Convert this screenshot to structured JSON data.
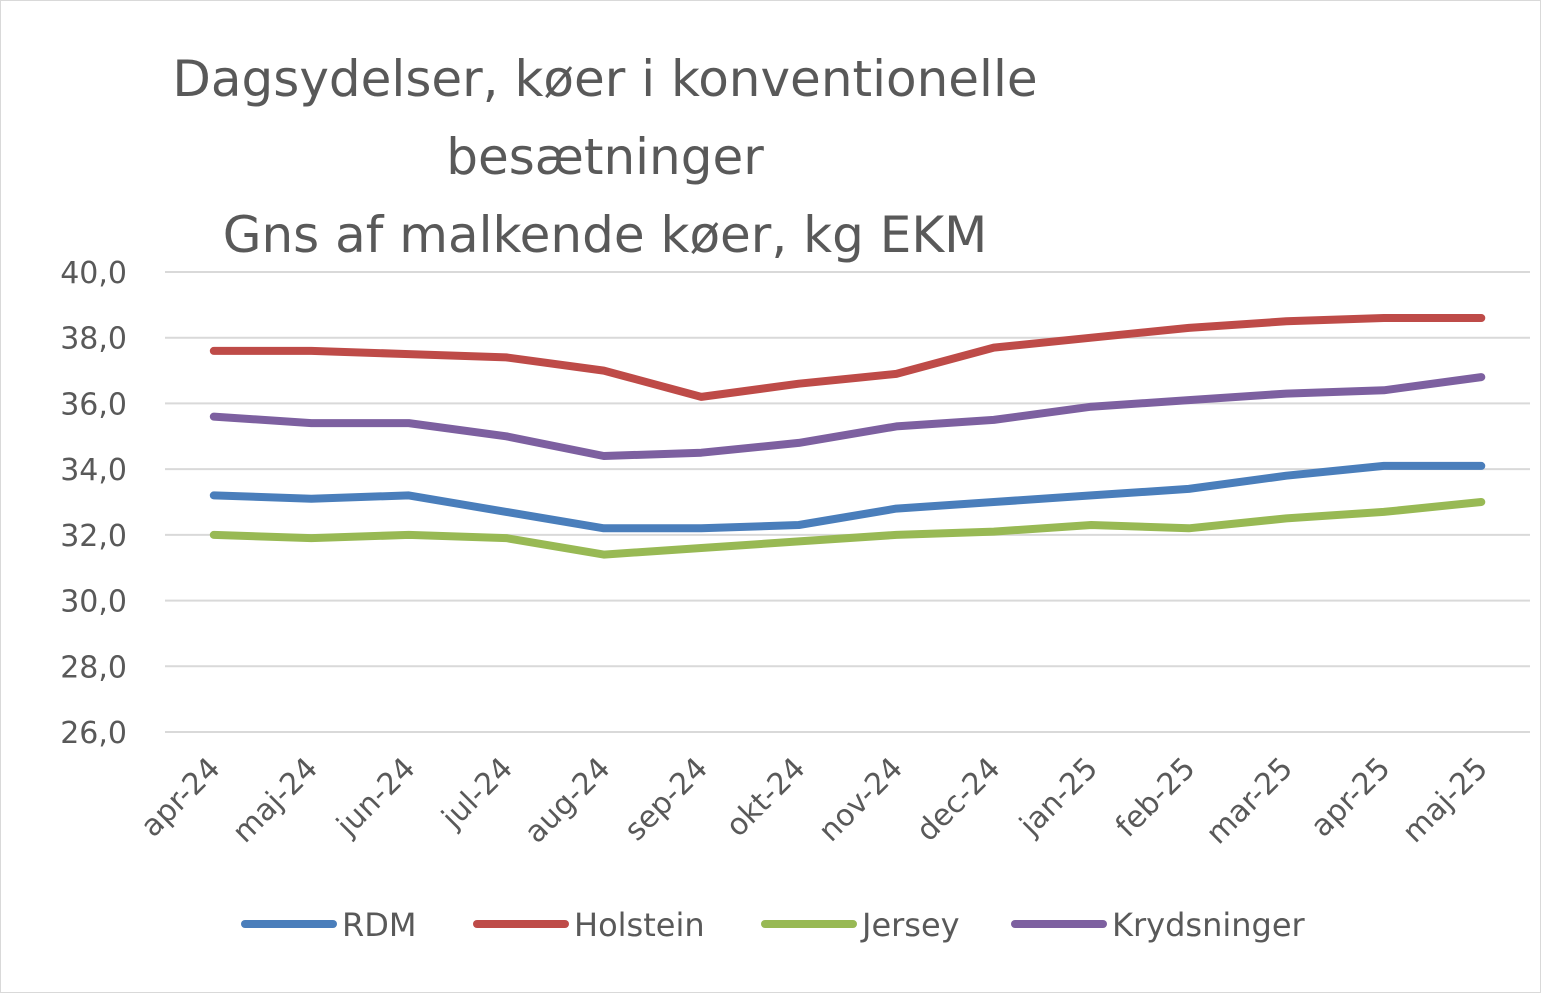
{
  "chart_data": {
    "type": "line",
    "title": [
      "Dagsydelser, køer i konventionelle",
      "besætninger",
      "Gns af malkende køer, kg EKM"
    ],
    "categories": [
      "apr-24",
      "maj-24",
      "jun-24",
      "jul-24",
      "aug-24",
      "sep-24",
      "okt-24",
      "nov-24",
      "dec-24",
      "jan-25",
      "feb-25",
      "mar-25",
      "apr-25",
      "maj-25"
    ],
    "ylim": [
      26,
      40
    ],
    "yticks": [
      "26,0",
      "28,0",
      "30,0",
      "32,0",
      "34,0",
      "36,0",
      "38,0",
      "40,0"
    ],
    "grid": true,
    "legend_position": "bottom",
    "series": [
      {
        "name": "RDM",
        "color": "#4a7ebb",
        "values": [
          33.2,
          33.1,
          33.2,
          32.7,
          32.2,
          32.2,
          32.3,
          32.8,
          33.0,
          33.2,
          33.4,
          33.8,
          34.1,
          34.1
        ]
      },
      {
        "name": "Holstein",
        "color": "#be4b48",
        "values": [
          37.6,
          37.6,
          37.5,
          37.4,
          37.0,
          36.2,
          36.6,
          36.9,
          37.7,
          38.0,
          38.3,
          38.5,
          38.6,
          38.6
        ]
      },
      {
        "name": "Jersey",
        "color": "#98b954",
        "values": [
          32.0,
          31.9,
          32.0,
          31.9,
          31.4,
          31.6,
          31.8,
          32.0,
          32.1,
          32.3,
          32.2,
          32.5,
          32.7,
          33.0
        ]
      },
      {
        "name": "Krydsninger",
        "color": "#7d60a0",
        "values": [
          35.6,
          35.4,
          35.4,
          35.0,
          34.4,
          34.5,
          34.8,
          35.3,
          35.5,
          35.9,
          36.1,
          36.3,
          36.4,
          36.8
        ]
      }
    ]
  }
}
